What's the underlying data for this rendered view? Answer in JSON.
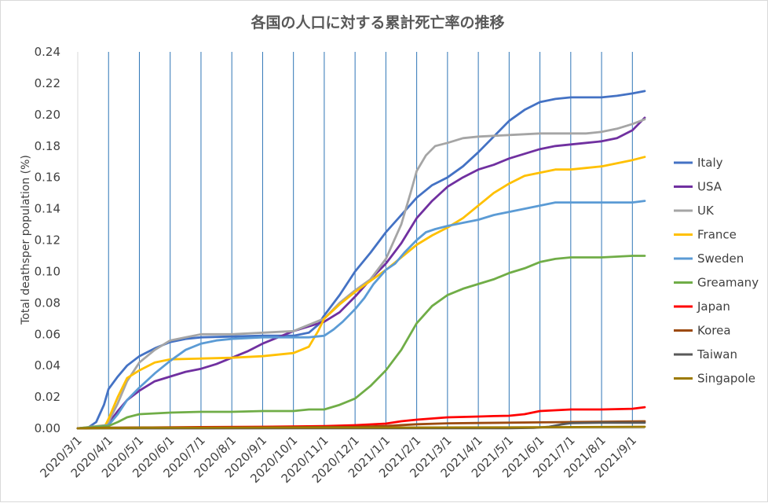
{
  "chart_data": {
    "type": "line",
    "title": "各国の人口に対する累計死亡率の推移",
    "xlabel": "",
    "ylabel": "Total deathsper population (%)",
    "ylim": [
      0,
      0.24
    ],
    "y_ticks": [
      "0.00",
      "0.02",
      "0.04",
      "0.06",
      "0.08",
      "0.10",
      "0.12",
      "0.14",
      "0.16",
      "0.18",
      "0.20",
      "0.22",
      "0.24"
    ],
    "x_ticks": [
      "2020/3/1",
      "2020/4/1",
      "2020/5/1",
      "2020/6/1",
      "2020/7/1",
      "2020/8/1",
      "2020/9/1",
      "2020/10/1",
      "2020/11/1",
      "2020/12/1",
      "2021/1/1",
      "2021/2/1",
      "2021/3/1",
      "2021/4/1",
      "2021/5/1",
      "2021/6/1",
      "2021/7/1",
      "2021/8/1",
      "2021/9/1"
    ],
    "grid": "vertical",
    "legend_position": "right",
    "x_unit": "months since 2020/3/1",
    "series": [
      {
        "name": "Italy",
        "color": "#4472C4",
        "points": [
          [
            0,
            0
          ],
          [
            0.3,
            0
          ],
          [
            0.6,
            0.004
          ],
          [
            0.85,
            0.015
          ],
          [
            1,
            0.025
          ],
          [
            1.3,
            0.033
          ],
          [
            1.6,
            0.04
          ],
          [
            2,
            0.046
          ],
          [
            2.5,
            0.051
          ],
          [
            3,
            0.055
          ],
          [
            3.5,
            0.057
          ],
          [
            4,
            0.058
          ],
          [
            5,
            0.0585
          ],
          [
            6,
            0.059
          ],
          [
            7,
            0.059
          ],
          [
            7.5,
            0.061
          ],
          [
            7.8,
            0.066
          ],
          [
            8,
            0.072
          ],
          [
            8.5,
            0.085
          ],
          [
            9,
            0.1
          ],
          [
            9.5,
            0.112
          ],
          [
            10,
            0.125
          ],
          [
            10.5,
            0.136
          ],
          [
            11,
            0.147
          ],
          [
            11.5,
            0.155
          ],
          [
            12,
            0.16
          ],
          [
            12.5,
            0.167
          ],
          [
            13,
            0.176
          ],
          [
            13.5,
            0.186
          ],
          [
            14,
            0.196
          ],
          [
            14.5,
            0.203
          ],
          [
            15,
            0.208
          ],
          [
            15.5,
            0.21
          ],
          [
            16,
            0.211
          ],
          [
            17,
            0.211
          ],
          [
            17.5,
            0.212
          ],
          [
            18,
            0.2135
          ],
          [
            18.4,
            0.215
          ]
        ]
      },
      {
        "name": "USA",
        "color": "#7030A0",
        "points": [
          [
            0,
            0
          ],
          [
            0.8,
            0.001
          ],
          [
            1,
            0.003
          ],
          [
            1.3,
            0.011
          ],
          [
            1.6,
            0.018
          ],
          [
            2,
            0.024
          ],
          [
            2.5,
            0.03
          ],
          [
            3,
            0.033
          ],
          [
            3.5,
            0.036
          ],
          [
            4,
            0.038
          ],
          [
            4.5,
            0.041
          ],
          [
            5,
            0.045
          ],
          [
            5.5,
            0.049
          ],
          [
            6,
            0.054
          ],
          [
            6.5,
            0.058
          ],
          [
            7,
            0.062
          ],
          [
            7.5,
            0.065
          ],
          [
            8,
            0.068
          ],
          [
            8.5,
            0.074
          ],
          [
            9,
            0.084
          ],
          [
            9.5,
            0.095
          ],
          [
            10,
            0.105
          ],
          [
            10.5,
            0.118
          ],
          [
            11,
            0.134
          ],
          [
            11.5,
            0.145
          ],
          [
            12,
            0.154
          ],
          [
            12.5,
            0.16
          ],
          [
            13,
            0.165
          ],
          [
            13.5,
            0.168
          ],
          [
            14,
            0.172
          ],
          [
            14.5,
            0.175
          ],
          [
            15,
            0.178
          ],
          [
            15.5,
            0.18
          ],
          [
            16,
            0.181
          ],
          [
            16.5,
            0.182
          ],
          [
            17,
            0.183
          ],
          [
            17.5,
            0.185
          ],
          [
            18,
            0.19
          ],
          [
            18.4,
            0.198
          ]
        ]
      },
      {
        "name": "UK",
        "color": "#A5A5A5",
        "points": [
          [
            0,
            0
          ],
          [
            0.8,
            0.0005
          ],
          [
            1,
            0.004
          ],
          [
            1.3,
            0.016
          ],
          [
            1.6,
            0.03
          ],
          [
            2,
            0.042
          ],
          [
            2.5,
            0.05
          ],
          [
            3,
            0.056
          ],
          [
            3.5,
            0.058
          ],
          [
            4,
            0.06
          ],
          [
            5,
            0.06
          ],
          [
            6,
            0.061
          ],
          [
            7,
            0.062
          ],
          [
            7.5,
            0.066
          ],
          [
            8,
            0.07
          ],
          [
            8.5,
            0.08
          ],
          [
            9,
            0.088
          ],
          [
            9.5,
            0.095
          ],
          [
            10,
            0.108
          ],
          [
            10.5,
            0.13
          ],
          [
            10.8,
            0.15
          ],
          [
            11,
            0.164
          ],
          [
            11.3,
            0.174
          ],
          [
            11.6,
            0.18
          ],
          [
            12,
            0.182
          ],
          [
            12.5,
            0.185
          ],
          [
            13,
            0.186
          ],
          [
            14,
            0.187
          ],
          [
            15,
            0.188
          ],
          [
            16,
            0.188
          ],
          [
            16.5,
            0.188
          ],
          [
            17,
            0.189
          ],
          [
            17.5,
            0.191
          ],
          [
            18,
            0.194
          ],
          [
            18.4,
            0.197
          ]
        ]
      },
      {
        "name": "France",
        "color": "#FFC000",
        "points": [
          [
            0,
            0
          ],
          [
            0.9,
            0.002
          ],
          [
            1,
            0.006
          ],
          [
            1.3,
            0.02
          ],
          [
            1.6,
            0.032
          ],
          [
            2,
            0.037
          ],
          [
            2.5,
            0.042
          ],
          [
            3,
            0.044
          ],
          [
            4,
            0.0445
          ],
          [
            5,
            0.045
          ],
          [
            6,
            0.046
          ],
          [
            6.5,
            0.047
          ],
          [
            7,
            0.048
          ],
          [
            7.5,
            0.052
          ],
          [
            7.8,
            0.062
          ],
          [
            8,
            0.07
          ],
          [
            8.5,
            0.079
          ],
          [
            9,
            0.087
          ],
          [
            9.5,
            0.094
          ],
          [
            10,
            0.101
          ],
          [
            10.5,
            0.109
          ],
          [
            11,
            0.117
          ],
          [
            11.5,
            0.123
          ],
          [
            12,
            0.128
          ],
          [
            12.5,
            0.134
          ],
          [
            13,
            0.142
          ],
          [
            13.5,
            0.15
          ],
          [
            14,
            0.156
          ],
          [
            14.5,
            0.161
          ],
          [
            15,
            0.163
          ],
          [
            15.5,
            0.165
          ],
          [
            16,
            0.165
          ],
          [
            16.5,
            0.166
          ],
          [
            17,
            0.167
          ],
          [
            17.5,
            0.169
          ],
          [
            18,
            0.171
          ],
          [
            18.4,
            0.173
          ]
        ]
      },
      {
        "name": "Sweden",
        "color": "#5B9BD5",
        "points": [
          [
            0,
            0
          ],
          [
            1,
            0.002
          ],
          [
            1.3,
            0.009
          ],
          [
            1.6,
            0.018
          ],
          [
            2,
            0.026
          ],
          [
            2.5,
            0.035
          ],
          [
            3,
            0.043
          ],
          [
            3.5,
            0.05
          ],
          [
            4,
            0.054
          ],
          [
            4.5,
            0.056
          ],
          [
            5,
            0.057
          ],
          [
            6,
            0.058
          ],
          [
            7,
            0.058
          ],
          [
            7.5,
            0.058
          ],
          [
            8,
            0.059
          ],
          [
            8.3,
            0.063
          ],
          [
            8.6,
            0.068
          ],
          [
            9,
            0.076
          ],
          [
            9.3,
            0.083
          ],
          [
            9.6,
            0.092
          ],
          [
            10,
            0.101
          ],
          [
            10.3,
            0.105
          ],
          [
            10.6,
            0.112
          ],
          [
            11,
            0.12
          ],
          [
            11.3,
            0.125
          ],
          [
            11.6,
            0.127
          ],
          [
            12,
            0.129
          ],
          [
            12.5,
            0.131
          ],
          [
            13,
            0.133
          ],
          [
            13.5,
            0.136
          ],
          [
            14,
            0.138
          ],
          [
            14.5,
            0.14
          ],
          [
            15,
            0.142
          ],
          [
            15.5,
            0.144
          ],
          [
            16,
            0.144
          ],
          [
            17,
            0.144
          ],
          [
            18,
            0.144
          ],
          [
            18.4,
            0.145
          ]
        ]
      },
      {
        "name": "Greamany",
        "color": "#70AD47",
        "points": [
          [
            0,
            0
          ],
          [
            1,
            0.0015
          ],
          [
            1.3,
            0.004
          ],
          [
            1.6,
            0.007
          ],
          [
            2,
            0.009
          ],
          [
            2.5,
            0.0095
          ],
          [
            3,
            0.01
          ],
          [
            4,
            0.0105
          ],
          [
            5,
            0.0105
          ],
          [
            6,
            0.011
          ],
          [
            7,
            0.011
          ],
          [
            7.5,
            0.012
          ],
          [
            8,
            0.012
          ],
          [
            8.5,
            0.015
          ],
          [
            9,
            0.019
          ],
          [
            9.5,
            0.027
          ],
          [
            10,
            0.037
          ],
          [
            10.5,
            0.05
          ],
          [
            11,
            0.067
          ],
          [
            11.5,
            0.078
          ],
          [
            12,
            0.085
          ],
          [
            12.5,
            0.089
          ],
          [
            13,
            0.092
          ],
          [
            13.5,
            0.095
          ],
          [
            14,
            0.099
          ],
          [
            14.5,
            0.102
          ],
          [
            15,
            0.106
          ],
          [
            15.5,
            0.108
          ],
          [
            16,
            0.109
          ],
          [
            17,
            0.109
          ],
          [
            18,
            0.11
          ],
          [
            18.4,
            0.11
          ]
        ]
      },
      {
        "name": "Japan",
        "color": "#FF0000",
        "points": [
          [
            0,
            0
          ],
          [
            2,
            0.0005
          ],
          [
            4,
            0.0008
          ],
          [
            6,
            0.001
          ],
          [
            8,
            0.0014
          ],
          [
            9,
            0.002
          ],
          [
            9.5,
            0.0025
          ],
          [
            10,
            0.003
          ],
          [
            10.5,
            0.0045
          ],
          [
            11,
            0.0055
          ],
          [
            12,
            0.007
          ],
          [
            13,
            0.0075
          ],
          [
            13.5,
            0.0078
          ],
          [
            14,
            0.008
          ],
          [
            14.5,
            0.009
          ],
          [
            15,
            0.011
          ],
          [
            15.5,
            0.0115
          ],
          [
            16,
            0.012
          ],
          [
            17,
            0.012
          ],
          [
            18,
            0.0125
          ],
          [
            18.4,
            0.0135
          ]
        ]
      },
      {
        "name": "Korea",
        "color": "#9C4A0F",
        "points": [
          [
            0,
            0
          ],
          [
            1,
            0.0004
          ],
          [
            2,
            0.0005
          ],
          [
            6,
            0.0006
          ],
          [
            9,
            0.0009
          ],
          [
            10,
            0.0015
          ],
          [
            11,
            0.0026
          ],
          [
            12,
            0.0032
          ],
          [
            13,
            0.0034
          ],
          [
            15,
            0.0038
          ],
          [
            17,
            0.0042
          ],
          [
            18.4,
            0.0045
          ]
        ]
      },
      {
        "name": "Taiwan",
        "color": "#595959",
        "points": [
          [
            0,
            0
          ],
          [
            14,
            0.0001
          ],
          [
            14.8,
            0.0003
          ],
          [
            15.3,
            0.001
          ],
          [
            15.7,
            0.0025
          ],
          [
            16,
            0.0033
          ],
          [
            17,
            0.0036
          ],
          [
            18.4,
            0.0036
          ]
        ]
      },
      {
        "name": "Singapole",
        "color": "#9C7A00",
        "points": [
          [
            0,
            0
          ],
          [
            2,
            0.0004
          ],
          [
            6,
            0.0005
          ],
          [
            10,
            0.0005
          ],
          [
            14,
            0.0006
          ],
          [
            18.4,
            0.001
          ]
        ]
      }
    ]
  }
}
